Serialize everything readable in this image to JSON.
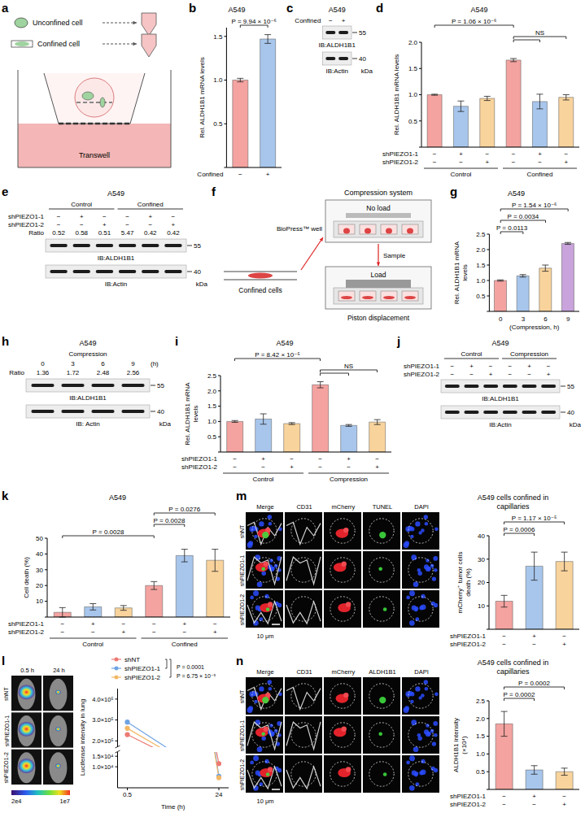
{
  "chart_data": [
    {
      "letter": "b",
      "type": "bar",
      "title": "A549",
      "y_label": "Rel. ALDH1B1 mRNA levels",
      "factor_rows": [
        {
          "label": "Confined",
          "marks": [
            "−",
            "+"
          ]
        }
      ],
      "values": [
        1.0,
        1.47
      ],
      "errors": [
        0.02,
        0.05
      ],
      "colors": [
        "#f4a3a0",
        "#a8c6ec"
      ],
      "ylim": [
        0,
        1.6
      ],
      "yticks": [
        0,
        0.5,
        {
          "value": 1,
          "label": "1.0"
        },
        1.5
      ],
      "brackets": [
        {
          "pairs": [
            [
              0,
              1
            ]
          ],
          "label": "P = 9.94 × 10⁻⁶"
        }
      ]
    },
    {
      "letter": "d",
      "type": "bar",
      "title": "A549",
      "y_label": "Rel. ALDH1B1 mRNA levels",
      "factor_rows": [
        {
          "label": "shPIEZO1-1",
          "marks": [
            "−",
            "+",
            "−",
            "−",
            "+",
            "−"
          ]
        },
        {
          "label": "shPIEZO1-2",
          "marks": [
            "−",
            "−",
            "+",
            "−",
            "−",
            "+"
          ]
        }
      ],
      "groups": [
        {
          "label": "Control",
          "size": 3
        },
        {
          "label": "Confined",
          "size": 3
        }
      ],
      "values": [
        1.0,
        0.78,
        0.93,
        1.66,
        0.87,
        0.95
      ],
      "errors": [
        0.01,
        0.1,
        0.04,
        0.03,
        0.14,
        0.05
      ],
      "colors": [
        "#f4a3a0",
        "#a8c6ec",
        "#f8d39c",
        "#f4a3a0",
        "#a8c6ec",
        "#f8d39c"
      ],
      "ylim": [
        0,
        2
      ],
      "yticks": [
        0,
        0.5,
        {
          "value": 1,
          "label": "1.0"
        },
        1.5,
        {
          "value": 2,
          "label": "2.0"
        }
      ],
      "brackets": [
        {
          "pairs": [
            [
              3,
              4
            ],
            [
              3,
              5
            ]
          ],
          "label": "NS"
        },
        {
          "pairs": [
            [
              0,
              3
            ]
          ],
          "label": "P = 1.06 × 10⁻⁶"
        }
      ]
    },
    {
      "letter": "g",
      "type": "bar",
      "title": "A549",
      "y_label": "Rel. ALDH1B1 mRNA levels",
      "categories": [
        "0",
        "3",
        "6",
        "9"
      ],
      "x_label": "(Compression, h)",
      "values": [
        1.0,
        1.15,
        1.4,
        2.2
      ],
      "errors": [
        0.02,
        0.04,
        0.1,
        0.03
      ],
      "colors": [
        "#f4a3a0",
        "#a8c6ec",
        "#f8d39c",
        "#c9a3dc"
      ],
      "ylim": [
        0,
        2.5
      ],
      "yticks": [
        0,
        0.5,
        {
          "value": 1,
          "label": "1.0"
        },
        1.5,
        {
          "value": 2,
          "label": "2.0"
        },
        2.5
      ],
      "brackets": [
        {
          "pairs": [
            [
              0,
              1
            ]
          ],
          "label": "P = 0.0113"
        },
        {
          "pairs": [
            [
              0,
              2
            ]
          ],
          "label": "P = 0.0034"
        },
        {
          "pairs": [
            [
              0,
              3
            ]
          ],
          "label": "P = 1.54 × 10⁻⁶"
        }
      ]
    },
    {
      "letter": "i",
      "type": "bar",
      "title": "A549",
      "y_label": "Rel. ALDH1B1 mRNA levels",
      "factor_rows": [
        {
          "label": "shPIEZO1-1",
          "marks": [
            "−",
            "+",
            "−",
            "−",
            "+",
            "−"
          ]
        },
        {
          "label": "shPIEZO1-2",
          "marks": [
            "−",
            "−",
            "+",
            "−",
            "−",
            "+"
          ]
        }
      ],
      "groups": [
        {
          "label": "Control",
          "size": 3
        },
        {
          "label": "Compression",
          "size": 3
        }
      ],
      "values": [
        1.0,
        1.08,
        0.93,
        2.2,
        0.87,
        0.98
      ],
      "errors": [
        0.03,
        0.17,
        0.03,
        0.1,
        0.03,
        0.08
      ],
      "colors": [
        "#f4a3a0",
        "#a8c6ec",
        "#f8d39c",
        "#f4a3a0",
        "#a8c6ec",
        "#f8d39c"
      ],
      "ylim": [
        0,
        2.5
      ],
      "yticks": [
        0,
        0.5,
        {
          "value": 1,
          "label": "1.0"
        },
        1.5,
        {
          "value": 2,
          "label": "2.0"
        },
        2.5
      ],
      "brackets": [
        {
          "pairs": [
            [
              3,
              4
            ],
            [
              3,
              5
            ]
          ],
          "label": "NS"
        },
        {
          "pairs": [
            [
              0,
              3
            ]
          ],
          "label": "P = 8.42 × 10⁻⁵"
        }
      ]
    },
    {
      "letter": "k",
      "type": "bar",
      "title": "A549",
      "y_label": "Cell death (%)",
      "factor_rows": [
        {
          "label": "shPIEZO1-1",
          "marks": [
            "−",
            "+",
            "−",
            "−",
            "+",
            "−"
          ]
        },
        {
          "label": "shPIEZO1-2",
          "marks": [
            "−",
            "−",
            "+",
            "−",
            "−",
            "+"
          ]
        }
      ],
      "groups": [
        {
          "label": "Control",
          "size": 3
        },
        {
          "label": "Confined",
          "size": 3
        }
      ],
      "values": [
        3,
        6.5,
        5.8,
        20,
        39,
        36
      ],
      "errors": [
        3,
        2,
        1.5,
        2.5,
        4,
        7
      ],
      "colors": [
        "#f4a3a0",
        "#a8c6ec",
        "#f8d39c",
        "#f4a3a0",
        "#a8c6ec",
        "#f8d39c"
      ],
      "ylim": [
        0,
        50
      ],
      "yticks": [
        0,
        10,
        20,
        30,
        40,
        50
      ],
      "brackets": [
        {
          "pairs": [
            [
              0,
              3
            ]
          ],
          "label": "P = 0.0028"
        },
        {
          "pairs": [
            [
              3,
              4
            ]
          ],
          "label": "P = 0.0028"
        },
        {
          "pairs": [
            [
              3,
              5
            ]
          ],
          "label": "P = 0.0276"
        }
      ]
    },
    {
      "type": "bar",
      "title": "A549 cells confined in capillaries",
      "y_label": "mCherry⁺ tumor cells death (%)",
      "factor_rows": [
        {
          "label": "shPIEZO1-1",
          "marks": [
            "−",
            "+",
            "−"
          ]
        },
        {
          "label": "shPIEZO1-2",
          "marks": [
            "−",
            "−",
            "+"
          ]
        }
      ],
      "values": [
        12,
        27,
        29
      ],
      "errors": [
        2.5,
        6,
        4
      ],
      "colors": [
        "#f4a3a0",
        "#a8c6ec",
        "#f8d39c"
      ],
      "ylim": [
        0,
        40
      ],
      "yticks": [
        0,
        10,
        20,
        30,
        40
      ],
      "brackets": [
        {
          "pairs": [
            [
              0,
              1
            ]
          ],
          "label": "P = 0.0006"
        },
        {
          "pairs": [
            [
              0,
              2
            ]
          ],
          "label": "P = 1.17 × 10⁻⁵"
        }
      ]
    },
    {
      "type": "bar",
      "title": "A549 cells confined in capillaries",
      "y_label": "ALDH1B1 intensity (×10⁴)",
      "factor_rows": [
        {
          "label": "shPIEZO1-1",
          "marks": [
            "−",
            "+",
            "−"
          ]
        },
        {
          "label": "shPIEZO1-2",
          "marks": [
            "−",
            "−",
            "+"
          ]
        }
      ],
      "values": [
        1.85,
        0.55,
        0.5
      ],
      "errors": [
        0.35,
        0.12,
        0.1
      ],
      "colors": [
        "#f4a3a0",
        "#a8c6ec",
        "#f8d39c"
      ],
      "ylim": [
        0,
        2.5
      ],
      "yticks": [
        0,
        0.5,
        {
          "value": 1,
          "label": "1.0"
        },
        1.5,
        {
          "value": 2,
          "label": "2.0"
        },
        2.5
      ],
      "brackets": [
        {
          "pairs": [
            [
              0,
              1
            ]
          ],
          "label": "P = 0.0002"
        },
        {
          "pairs": [
            [
              0,
              2
            ]
          ],
          "label": "P = 0.0002"
        }
      ]
    },
    {
      "type": "line",
      "y_label": "Luciferase intensity in lung",
      "x_label": "Time (h)",
      "categories": [
        "0.5",
        "24"
      ],
      "y_segments": [
        {
          "ylim": [
            170000,
            450000
          ],
          "yticks": [
            {
              "value": 200000,
              "label": "2.0×10⁵"
            },
            {
              "value": 300000,
              "label": "3.0×10⁵"
            },
            {
              "value": 400000,
              "label": "4.0×10⁵"
            }
          ]
        },
        {
          "ylim": [
            0,
            17000
          ],
          "yticks": [
            {
              "value": 10000,
              "label": "1.0×10⁴"
            },
            {
              "value": 15000,
              "label": "1.5×10⁴"
            }
          ]
        }
      ],
      "series": [
        {
          "name": "shNT",
          "color": "#ec7a74",
          "values": [
            230000,
            11500
          ]
        },
        {
          "name": "shPIEZO1-1",
          "color": "#6fa3e3",
          "values": [
            290000,
            5500
          ]
        },
        {
          "name": "shPIEZO1-2",
          "color": "#f2b866",
          "values": [
            260000,
            4800
          ]
        }
      ],
      "comparisons": [
        {
          "series": [
            0,
            1
          ],
          "label": "P = 0.0001"
        },
        {
          "series": [
            0,
            2
          ],
          "label": "P = 6.75 × 10⁻⁵"
        }
      ],
      "legend": "top"
    }
  ],
  "transwell_schematic": {
    "letter": "a",
    "unconfined": "Unconfined cell",
    "confined": "Confined cell",
    "device": "Transwell"
  },
  "compression_schematic": {
    "letter": "f",
    "title": "Compression system",
    "top_state": "No load",
    "well": "BioPress™ well",
    "cells": "Confined cells",
    "step": "Sample",
    "bottom_state": "Load",
    "mechanism": "Piston displacement"
  },
  "blots": [
    {
      "letter": "c",
      "title": "A549",
      "factor_rows": [
        {
          "label": "Confined",
          "marks": [
            "−",
            "+"
          ]
        }
      ],
      "bands": [
        {
          "label": "IB:ALDH1B1",
          "marker": 55
        },
        {
          "label": "IB:Actin",
          "marker": 40
        }
      ],
      "marker_unit": "kDa"
    },
    {
      "letter": "e",
      "title": "A549",
      "groups": [
        {
          "label": "Control",
          "size": 3
        },
        {
          "label": "Confined",
          "size": 3
        }
      ],
      "factor_rows": [
        {
          "label": "shPIEZO1-1",
          "marks": [
            "−",
            "+",
            "−",
            "−",
            "+",
            "−"
          ]
        },
        {
          "label": "shPIEZO1-2",
          "marks": [
            "−",
            "−",
            "+",
            "−",
            "−",
            "+"
          ]
        }
      ],
      "ratio_label": "Ratio",
      "ratios": [
        0.52,
        0.58,
        0.51,
        5.47,
        0.42,
        0.42
      ],
      "bands": [
        {
          "label": "IB:ALDH1B1",
          "marker": 55
        },
        {
          "label": "IB:Actin",
          "marker": 40
        }
      ],
      "marker_unit": "kDa"
    },
    {
      "letter": "h",
      "title": "A549",
      "header": "Compression",
      "lanes": [
        0,
        3,
        6,
        9
      ],
      "lane_unit": "(h)",
      "ratio_label": "Ratio",
      "ratios": [
        1.36,
        1.72,
        2.48,
        2.56
      ],
      "bands": [
        {
          "label": "IB:ALDH1B1",
          "marker": 55
        },
        {
          "label": "IB: Actin",
          "marker": 40
        }
      ],
      "marker_unit": "kDa"
    },
    {
      "letter": "j",
      "title": "A549",
      "groups": [
        {
          "label": "Control",
          "size": 3
        },
        {
          "label": "Compression",
          "size": 3
        }
      ],
      "factor_rows": [
        {
          "label": "shPIEZO1-1",
          "marks": [
            "−",
            "+",
            "−",
            "−",
            "+",
            "−"
          ]
        },
        {
          "label": "shPIEZO1-2",
          "marks": [
            "−",
            "−",
            "+",
            "−",
            "−",
            "+"
          ]
        }
      ],
      "bands": [
        {
          "label": "IB:ALDH1B1",
          "marker": 55
        },
        {
          "label": "IB:Actin",
          "marker": 40
        }
      ],
      "marker_unit": "kDa"
    }
  ],
  "mouse_images": {
    "letter": "l",
    "columns": [
      "0.5 h",
      "24 h"
    ],
    "rows": [
      "shNT",
      "shPIEZO1-1",
      "shPIEZO1-2"
    ],
    "colorbar_range": [
      20000,
      10000000
    ],
    "colorbar_ticks": [
      {
        "value": 20000,
        "label": "2e4"
      },
      {
        "value": 10000000,
        "label": "1e7"
      }
    ]
  },
  "image_panels": [
    {
      "letter": "m",
      "columns": [
        "Merge",
        "CD31",
        "mCherry",
        "TUNEL",
        "DAPI"
      ],
      "rows": [
        "shNT",
        "shPIEZO1-1",
        "shPIEZO1-2"
      ],
      "scale_bar": "10 μm"
    },
    {
      "letter": "n",
      "columns": [
        "Merge",
        "CD31",
        "mCherry",
        "ALDH1B1",
        "DAPI"
      ],
      "rows": [
        "shNT",
        "shPIEZO1-1",
        "shPIEZO1-2"
      ],
      "scale_bar": "10 μm"
    }
  ]
}
